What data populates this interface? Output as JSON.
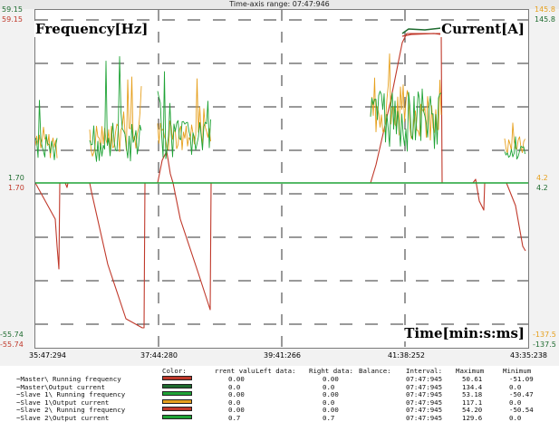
{
  "header": {
    "title": "Time-axis range: 07:47:946"
  },
  "plot": {
    "freq_axis_left": [
      "59.15",
      "1.70",
      "-55.74"
    ],
    "freq_axis_left_dup": [
      "59.15",
      "1.70",
      "-55.74"
    ],
    "current_axis_right": [
      "145.8",
      "4.2",
      "-137.5"
    ],
    "current_axis_right_dup": [
      "145.8",
      "4.2",
      "-137.5"
    ],
    "time_ticks": [
      "35:47:294",
      "37:44:280",
      "39:41:266",
      "41:38:252",
      "43:35:238"
    ],
    "label_frequency": "Frequency[Hz]",
    "label_current": "Current[A]",
    "label_time": "Time[min:s:ms]"
  },
  "colors": {
    "frequency": "#c0392b",
    "current": "#1fa336",
    "slave1_current": "#e6a01e",
    "dark_green": "#1e6b2f",
    "grid": "#333333"
  },
  "legend": {
    "headers": {
      "color": "Color:",
      "current_value": "rrent valu",
      "left_data": "Left data:",
      "right_data": "Right data:",
      "balance": "Balance:",
      "interval": "Interval:",
      "maximum": "Maximum",
      "minimum": "Minimum"
    },
    "rows": [
      {
        "name": "~Master\\ Running frequency",
        "swatch": "#c0392b",
        "current": "0.00",
        "right": "0.00",
        "interval": "07:47:945",
        "max": "50.61",
        "min": "-51.09"
      },
      {
        "name": "~Master\\Output current",
        "swatch": "#1e6b2f",
        "current": "0.0",
        "right": "0.0",
        "interval": "07:47:945",
        "max": "134.4",
        "min": "0.0"
      },
      {
        "name": "~Slave 1\\ Running frequency",
        "swatch": "#1fa336",
        "current": "0.00",
        "right": "0.00",
        "interval": "07:47:945",
        "max": "53.18",
        "min": "-50.47"
      },
      {
        "name": "~Slave 1\\Output current",
        "swatch": "#e6a01e",
        "current": "0.0",
        "right": "0.0",
        "interval": "07:47:945",
        "max": "117.1",
        "min": "0.0"
      },
      {
        "name": "~Slave 2\\ Running frequency",
        "swatch": "#c0392b",
        "current": "0.00",
        "right": "0.00",
        "interval": "07:47:945",
        "max": "54.20",
        "min": "-50.54"
      },
      {
        "name": "~Slave 2\\Output current",
        "swatch": "#1fa336",
        "current": "0.7",
        "right": "0.7",
        "interval": "07:47:945",
        "max": "129.6",
        "min": "0.0"
      }
    ]
  }
}
